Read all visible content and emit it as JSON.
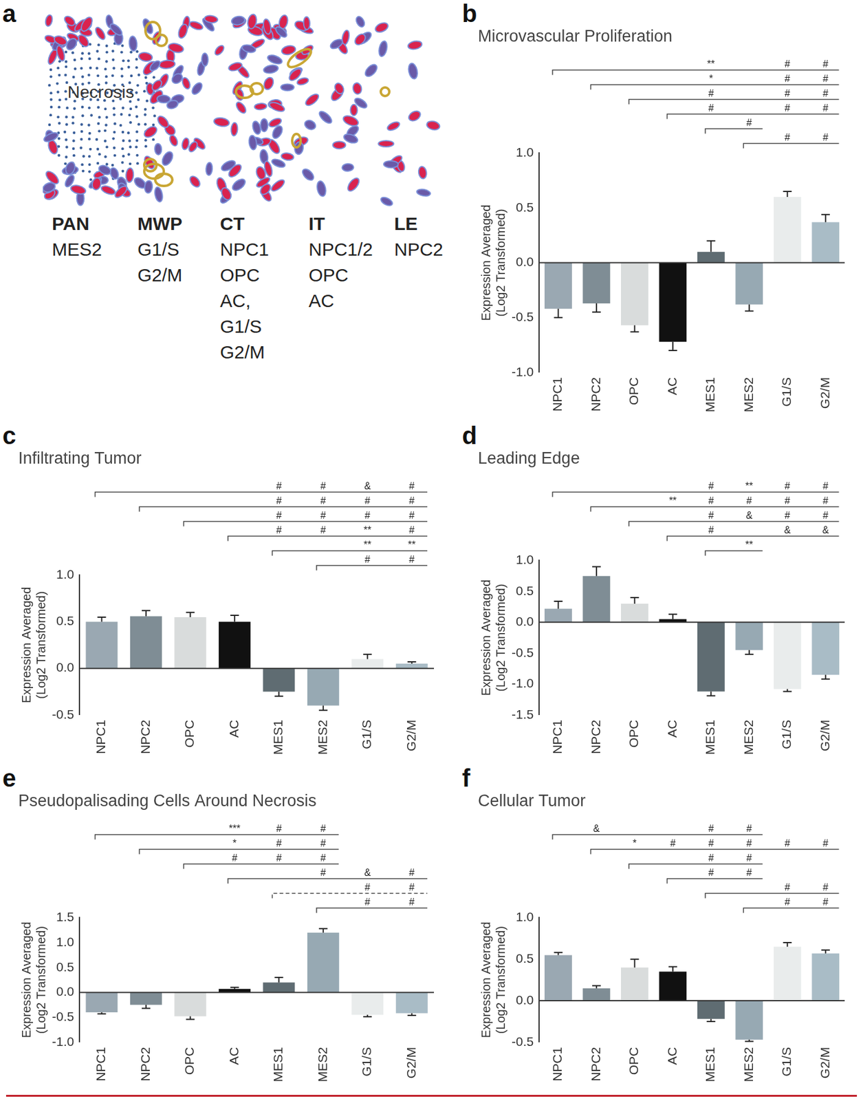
{
  "diagram": {
    "panel": "a",
    "necrosis_label": "Necrosis",
    "regions": [
      {
        "name": "PAN",
        "types": [
          "MES2"
        ]
      },
      {
        "name": "MWP",
        "types": [
          "G1/S",
          "G2/M"
        ]
      },
      {
        "name": "CT",
        "types": [
          "NPC1",
          "OPC",
          "AC,",
          "G1/S",
          "G2/M"
        ]
      },
      {
        "name": "IT",
        "types": [
          "NPC1/2",
          "OPC",
          "AC"
        ]
      },
      {
        "name": "LE",
        "types": [
          "NPC2"
        ]
      }
    ]
  },
  "chart_data": [
    {
      "panel": "b",
      "type": "bar",
      "title": "Microvascular Proliferation",
      "ylabel": [
        "Expression Averaged",
        "(Log2 Transformed)"
      ],
      "categories": [
        "NPC1",
        "NPC2",
        "OPC",
        "AC",
        "MES1",
        "MES2",
        "G1/S",
        "G2/M"
      ],
      "values": [
        -0.42,
        -0.37,
        -0.57,
        -0.72,
        0.1,
        -0.38,
        0.6,
        0.37
      ],
      "errors": [
        0.08,
        0.08,
        0.06,
        0.08,
        0.1,
        0.06,
        0.05,
        0.07
      ],
      "colors": [
        "#9aa8b2",
        "#7f8d95",
        "#d9dcdc",
        "#111111",
        "#5f6c72",
        "#97a9b3",
        "#e9ecec",
        "#a9bcc6"
      ],
      "ylim": [
        -1,
        1
      ],
      "yticks": [
        {
          "value": -1,
          "label": "-1.0"
        },
        -0.5,
        {
          "value": 0,
          "label": "0.0"
        },
        0.5,
        {
          "value": 1,
          "label": "1.0"
        }
      ],
      "grid": false,
      "significance": [
        {
          "from": "NPC1",
          "marks": [
            {
              "to": "MES1",
              "label": "**"
            },
            {
              "to": "G1/S",
              "label": "#"
            },
            {
              "to": "G2/M",
              "label": "#"
            }
          ]
        },
        {
          "from": "NPC2",
          "marks": [
            {
              "to": "MES1",
              "label": "*"
            },
            {
              "to": "G1/S",
              "label": "#"
            },
            {
              "to": "G2/M",
              "label": "#"
            }
          ]
        },
        {
          "from": "OPC",
          "marks": [
            {
              "to": "MES1",
              "label": "#"
            },
            {
              "to": "G1/S",
              "label": "#"
            },
            {
              "to": "G2/M",
              "label": "#"
            }
          ]
        },
        {
          "from": "AC",
          "marks": [
            {
              "to": "MES1",
              "label": "#"
            },
            {
              "to": "G1/S",
              "label": "#"
            },
            {
              "to": "G2/M",
              "label": "#"
            }
          ]
        },
        {
          "from": "MES1",
          "marks": [
            {
              "to": "MES2",
              "label": "#"
            }
          ]
        },
        {
          "from": "MES2",
          "marks": [
            {
              "to": "G1/S",
              "label": "#"
            },
            {
              "to": "G2/M",
              "label": "#"
            }
          ]
        }
      ]
    },
    {
      "panel": "c",
      "type": "bar",
      "title": "Infiltrating Tumor",
      "ylabel": [
        "Expression Averaged",
        "(Log2 Transformed)"
      ],
      "categories": [
        "NPC1",
        "NPC2",
        "OPC",
        "AC",
        "MES1",
        "MES2",
        "G1/S",
        "G2/M"
      ],
      "values": [
        0.5,
        0.56,
        0.55,
        0.5,
        -0.25,
        -0.4,
        0.1,
        0.05
      ],
      "errors": [
        0.05,
        0.06,
        0.05,
        0.07,
        0.05,
        0.05,
        0.05,
        0.02
      ],
      "colors": [
        "#9aa8b2",
        "#7f8d95",
        "#d9dcdc",
        "#111111",
        "#5f6c72",
        "#97a9b3",
        "#e9ecec",
        "#a9bcc6"
      ],
      "ylim": [
        -0.5,
        1
      ],
      "yticks": [
        -0.5,
        {
          "value": 0,
          "label": "0.0"
        },
        0.5,
        {
          "value": 1,
          "label": "1.0"
        }
      ],
      "grid": false,
      "significance": [
        {
          "from": "NPC1",
          "marks": [
            {
              "to": "MES1",
              "label": "#"
            },
            {
              "to": "MES2",
              "label": "#"
            },
            {
              "to": "G1/S",
              "label": "&"
            },
            {
              "to": "G2/M",
              "label": "#"
            }
          ]
        },
        {
          "from": "NPC2",
          "marks": [
            {
              "to": "MES1",
              "label": "#"
            },
            {
              "to": "MES2",
              "label": "#"
            },
            {
              "to": "G1/S",
              "label": "#"
            },
            {
              "to": "G2/M",
              "label": "#"
            }
          ]
        },
        {
          "from": "OPC",
          "marks": [
            {
              "to": "MES1",
              "label": "#"
            },
            {
              "to": "MES2",
              "label": "#"
            },
            {
              "to": "G1/S",
              "label": "#"
            },
            {
              "to": "G2/M",
              "label": "#"
            }
          ]
        },
        {
          "from": "AC",
          "marks": [
            {
              "to": "MES1",
              "label": "#"
            },
            {
              "to": "MES2",
              "label": "#"
            },
            {
              "to": "G1/S",
              "label": "**"
            },
            {
              "to": "G2/M",
              "label": "#"
            }
          ]
        },
        {
          "from": "MES1",
          "marks": [
            {
              "to": "G1/S",
              "label": "**"
            },
            {
              "to": "G2/M",
              "label": "**"
            }
          ]
        },
        {
          "from": "MES2",
          "marks": [
            {
              "to": "G1/S",
              "label": "#"
            },
            {
              "to": "G2/M",
              "label": "#"
            }
          ]
        }
      ]
    },
    {
      "panel": "d",
      "type": "bar",
      "title": "Leading Edge",
      "ylabel": [
        "Expression Averaged",
        "(Log2 Transformed)"
      ],
      "categories": [
        "NPC1",
        "NPC2",
        "OPC",
        "AC",
        "MES1",
        "MES2",
        "G1/S",
        "G2/M"
      ],
      "values": [
        0.22,
        0.75,
        0.3,
        0.05,
        -1.12,
        -0.45,
        -1.08,
        -0.85
      ],
      "errors": [
        0.12,
        0.15,
        0.1,
        0.08,
        0.07,
        0.07,
        0.04,
        0.07
      ],
      "colors": [
        "#9aa8b2",
        "#7f8d95",
        "#d9dcdc",
        "#111111",
        "#5f6c72",
        "#97a9b3",
        "#e9ecec",
        "#a9bcc6"
      ],
      "ylim": [
        -1.5,
        1
      ],
      "yticks": [
        -1.5,
        {
          "value": -1,
          "label": "-1.0"
        },
        -0.5,
        {
          "value": 0,
          "label": "0.0"
        },
        0.5,
        {
          "value": 1,
          "label": "1.0"
        }
      ],
      "grid": false,
      "significance": [
        {
          "from": "NPC1",
          "marks": [
            {
              "to": "MES1",
              "label": "#"
            },
            {
              "to": "MES2",
              "label": "**"
            },
            {
              "to": "G1/S",
              "label": "#"
            },
            {
              "to": "G2/M",
              "label": "#"
            }
          ]
        },
        {
          "from": "NPC2",
          "marks": [
            {
              "to": "AC",
              "label": "**"
            },
            {
              "to": "MES1",
              "label": "#"
            },
            {
              "to": "MES2",
              "label": "#"
            },
            {
              "to": "G1/S",
              "label": "#"
            },
            {
              "to": "G2/M",
              "label": "#"
            }
          ]
        },
        {
          "from": "OPC",
          "marks": [
            {
              "to": "MES1",
              "label": "#"
            },
            {
              "to": "MES2",
              "label": "&"
            },
            {
              "to": "G1/S",
              "label": "#"
            },
            {
              "to": "G2/M",
              "label": "#"
            }
          ]
        },
        {
          "from": "AC",
          "marks": [
            {
              "to": "MES1",
              "label": "#"
            },
            {
              "to": "G1/S",
              "label": "&"
            },
            {
              "to": "G2/M",
              "label": "&"
            }
          ]
        },
        {
          "from": "MES1",
          "marks": [
            {
              "to": "MES2",
              "label": "**"
            }
          ]
        }
      ]
    },
    {
      "panel": "e",
      "type": "bar",
      "title": "Pseudopalisading Cells Around Necrosis",
      "ylabel": [
        "Expression Averaged",
        "(Log2 Transformed)"
      ],
      "categories": [
        "NPC1",
        "NPC2",
        "OPC",
        "AC",
        "MES1",
        "MES2",
        "G1/S",
        "G2/M"
      ],
      "values": [
        -0.4,
        -0.25,
        -0.48,
        0.07,
        0.2,
        1.2,
        -0.45,
        -0.42
      ],
      "errors": [
        0.03,
        0.07,
        0.06,
        0.03,
        0.1,
        0.08,
        0.04,
        0.04
      ],
      "colors": [
        "#9aa8b2",
        "#7f8d95",
        "#d9dcdc",
        "#111111",
        "#5f6c72",
        "#97a9b3",
        "#e9ecec",
        "#a9bcc6"
      ],
      "ylim": [
        -1,
        1.5
      ],
      "yticks": [
        {
          "value": -1,
          "label": "-1.0"
        },
        -0.5,
        {
          "value": 0,
          "label": "0.0"
        },
        0.5,
        {
          "value": 1,
          "label": "1.0"
        },
        1.5
      ],
      "grid": false,
      "significance": [
        {
          "from": "NPC1",
          "marks": [
            {
              "to": "AC",
              "label": "***"
            },
            {
              "to": "MES1",
              "label": "#"
            },
            {
              "to": "MES2",
              "label": "#"
            }
          ]
        },
        {
          "from": "NPC2",
          "marks": [
            {
              "to": "AC",
              "label": "*"
            },
            {
              "to": "MES1",
              "label": "#"
            },
            {
              "to": "MES2",
              "label": "#"
            }
          ]
        },
        {
          "from": "OPC",
          "marks": [
            {
              "to": "AC",
              "label": "#"
            },
            {
              "to": "MES1",
              "label": "#"
            },
            {
              "to": "MES2",
              "label": "#"
            }
          ]
        },
        {
          "from": "AC",
          "marks": [
            {
              "to": "MES2",
              "label": "#"
            },
            {
              "to": "G1/S",
              "label": "&"
            },
            {
              "to": "G2/M",
              "label": "#"
            }
          ]
        },
        {
          "from": "MES1",
          "line_style": "dashed",
          "marks": [
            {
              "to": "G1/S",
              "label": "#"
            },
            {
              "to": "G2/M",
              "label": "#"
            }
          ]
        },
        {
          "from": "MES2",
          "marks": [
            {
              "to": "G1/S",
              "label": "#"
            },
            {
              "to": "G2/M",
              "label": "#"
            }
          ]
        }
      ]
    },
    {
      "panel": "f",
      "type": "bar",
      "title": "Cellular Tumor",
      "ylabel": [
        "Expression Averaged",
        "(Log2 Transformed)"
      ],
      "categories": [
        "NPC1",
        "NPC2",
        "OPC",
        "AC",
        "MES1",
        "MES2",
        "G1/S",
        "G2/M"
      ],
      "values": [
        0.55,
        0.15,
        0.4,
        0.35,
        -0.22,
        -0.47,
        0.65,
        0.57
      ],
      "errors": [
        0.03,
        0.03,
        0.1,
        0.06,
        0.03,
        0.02,
        0.05,
        0.04
      ],
      "colors": [
        "#9aa8b2",
        "#7f8d95",
        "#d9dcdc",
        "#111111",
        "#5f6c72",
        "#97a9b3",
        "#e9ecec",
        "#a9bcc6"
      ],
      "ylim": [
        -0.5,
        1
      ],
      "yticks": [
        -0.5,
        {
          "value": 0,
          "label": "0.0"
        },
        0.5,
        {
          "value": 1,
          "label": "1.0"
        }
      ],
      "grid": false,
      "significance": [
        {
          "from": "NPC1",
          "marks": [
            {
              "to": "NPC2",
              "label": "&"
            },
            {
              "to": "MES1",
              "label": "#"
            },
            {
              "to": "MES2",
              "label": "#"
            }
          ]
        },
        {
          "from": "NPC2",
          "marks": [
            {
              "to": "OPC",
              "label": "*"
            },
            {
              "to": "AC",
              "label": "#"
            },
            {
              "to": "MES1",
              "label": "#"
            },
            {
              "to": "MES2",
              "label": "#"
            },
            {
              "to": "G1/S",
              "label": "#"
            },
            {
              "to": "G2/M",
              "label": "#"
            }
          ]
        },
        {
          "from": "OPC",
          "marks": [
            {
              "to": "MES1",
              "label": "#"
            },
            {
              "to": "MES2",
              "label": "#"
            }
          ]
        },
        {
          "from": "AC",
          "marks": [
            {
              "to": "MES1",
              "label": "#"
            },
            {
              "to": "MES2",
              "label": "#"
            }
          ]
        },
        {
          "from": "MES1",
          "marks": [
            {
              "to": "G1/S",
              "label": "#"
            },
            {
              "to": "G2/M",
              "label": "#"
            }
          ]
        },
        {
          "from": "MES2",
          "marks": [
            {
              "to": "G1/S",
              "label": "#"
            },
            {
              "to": "G2/M",
              "label": "#"
            }
          ]
        }
      ]
    }
  ]
}
